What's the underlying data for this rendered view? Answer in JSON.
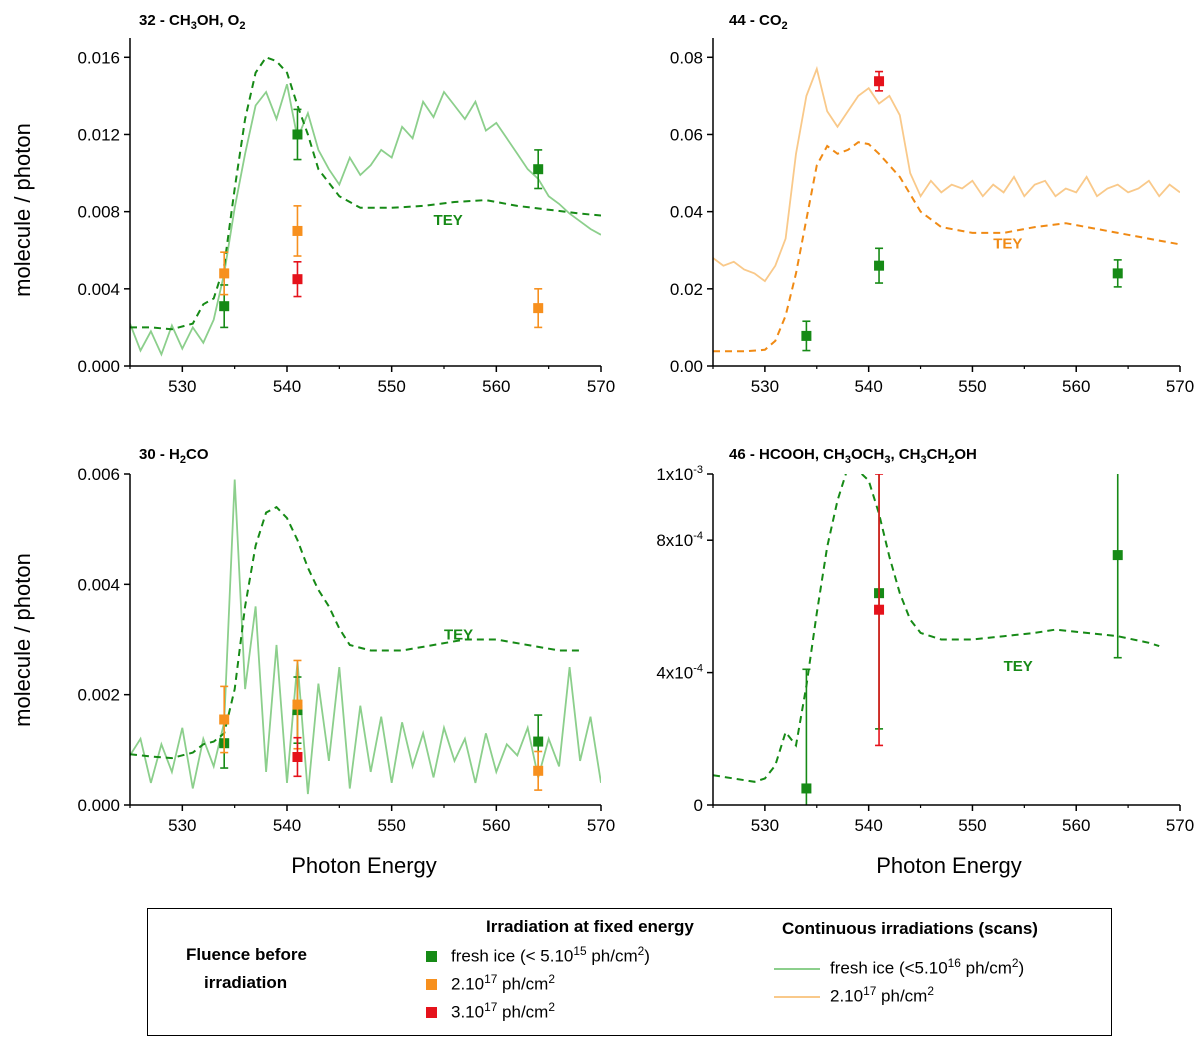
{
  "labels": {
    "ylabel": "molecule / photon",
    "xlabel": "Photon Energy",
    "tey": "TEY"
  },
  "colors": {
    "fresh_fixed": "#168a16",
    "fluence_2e17_fixed": "#f7901e",
    "fluence_3e17_fixed": "#e5121b",
    "fresh_scan": "#8ccf8c",
    "scan_2e17": "#f9c98a",
    "tey_green": "#168a16",
    "tey_orange": "#f08a14"
  },
  "legend": {
    "fluence_label_1": "Fluence before",
    "fluence_label_2": "irradiation",
    "fixed_header": "Irradiation at fixed energy",
    "scan_header": "Continuous irradiations (scans)",
    "fixed_items": [
      {
        "text": "fresh ice (< 5.10",
        "sup": "15",
        "unit": " ph/cm",
        "unit_sup": "2",
        "tail": ")",
        "color_key": "fresh_fixed"
      },
      {
        "text": "2.10",
        "sup": "17",
        "unit": " ph/cm",
        "unit_sup": "2",
        "tail": "",
        "color_key": "fluence_2e17_fixed"
      },
      {
        "text": "3.10",
        "sup": "17",
        "unit": " ph/cm",
        "unit_sup": "2",
        "tail": "",
        "color_key": "fluence_3e17_fixed"
      }
    ],
    "scan_items": [
      {
        "text": "fresh ice (<5.10",
        "sup": "16",
        "unit": " ph/cm",
        "unit_sup": "2",
        "tail": ")",
        "color_key": "fresh_scan"
      },
      {
        "text": "2.10",
        "sup": "17",
        "unit": " ph/cm",
        "unit_sup": "2",
        "tail": "",
        "color_key": "scan_2e17"
      }
    ]
  },
  "chart_data": [
    {
      "type": "line",
      "title_parts": [
        {
          "t": "32 - CH"
        },
        {
          "t": "3",
          "sub": true
        },
        {
          "t": "OH, O"
        },
        {
          "t": "2",
          "sub": true
        }
      ],
      "xlim": [
        525,
        570
      ],
      "xticks": [
        530,
        540,
        550,
        560,
        570
      ],
      "ylim": [
        0,
        0.017
      ],
      "yticks": [
        0,
        0.004,
        0.008,
        0.012,
        0.016
      ],
      "ytick_labels": [
        "0.000",
        "0.004",
        "0.008",
        "0.012",
        "0.016"
      ],
      "tey_color_key": "tey_green",
      "tey_label_at": [
        554,
        0.0073
      ],
      "tey": {
        "x": [
          525,
          527,
          529,
          531,
          532,
          533,
          534,
          535,
          536,
          537,
          538,
          539,
          540,
          541,
          542,
          543,
          545,
          547,
          550,
          553,
          556,
          559,
          562,
          565,
          568,
          570
        ],
        "y": [
          0.002,
          0.002,
          0.0019,
          0.0022,
          0.0032,
          0.0035,
          0.0052,
          0.0092,
          0.0128,
          0.0152,
          0.016,
          0.0158,
          0.0152,
          0.0135,
          0.012,
          0.0102,
          0.0088,
          0.0082,
          0.0082,
          0.0083,
          0.0085,
          0.0086,
          0.0083,
          0.0081,
          0.0079,
          0.0078
        ]
      },
      "scans": [
        {
          "color_key": "fresh_scan",
          "x": [
            525,
            526,
            527,
            528,
            529,
            530,
            531,
            532,
            533,
            534,
            535,
            536,
            537,
            538,
            539,
            540,
            541,
            542,
            543,
            544,
            545,
            546,
            547,
            548,
            549,
            550,
            551,
            552,
            553,
            554,
            555,
            556,
            557,
            558,
            559,
            560,
            561,
            562,
            563,
            564,
            565,
            566,
            567,
            568,
            569,
            570
          ],
          "y": [
            0.0022,
            0.0008,
            0.0018,
            0.0006,
            0.0021,
            0.0009,
            0.002,
            0.0012,
            0.0024,
            0.0048,
            0.0082,
            0.011,
            0.0135,
            0.0142,
            0.0128,
            0.0146,
            0.0118,
            0.0131,
            0.0112,
            0.0102,
            0.0094,
            0.0108,
            0.0099,
            0.0104,
            0.0112,
            0.0108,
            0.0124,
            0.0118,
            0.0137,
            0.0129,
            0.0142,
            0.0135,
            0.0128,
            0.0137,
            0.0122,
            0.0126,
            0.0118,
            0.011,
            0.0102,
            0.0097,
            0.0088,
            0.0084,
            0.0079,
            0.0075,
            0.0071,
            0.0068
          ]
        }
      ],
      "points": [
        {
          "x": 534,
          "y": 0.0031,
          "err": 0.0011,
          "color_key": "fresh_fixed"
        },
        {
          "x": 541,
          "y": 0.012,
          "err": 0.0013,
          "color_key": "fresh_fixed"
        },
        {
          "x": 564,
          "y": 0.0102,
          "err": 0.001,
          "color_key": "fresh_fixed"
        },
        {
          "x": 534,
          "y": 0.0048,
          "err": 0.0011,
          "color_key": "fluence_2e17_fixed"
        },
        {
          "x": 541,
          "y": 0.007,
          "err": 0.0013,
          "color_key": "fluence_2e17_fixed"
        },
        {
          "x": 564,
          "y": 0.003,
          "err": 0.001,
          "color_key": "fluence_2e17_fixed"
        },
        {
          "x": 541,
          "y": 0.0045,
          "err": 0.0009,
          "color_key": "fluence_3e17_fixed"
        }
      ]
    },
    {
      "type": "line",
      "title_parts": [
        {
          "t": "44 - CO"
        },
        {
          "t": "2",
          "sub": true
        }
      ],
      "xlim": [
        525,
        570
      ],
      "xticks": [
        530,
        540,
        550,
        560,
        570
      ],
      "ylim": [
        0,
        0.085
      ],
      "yticks": [
        0,
        0.02,
        0.04,
        0.06,
        0.08
      ],
      "ytick_labels": [
        "0.00",
        "0.02",
        "0.04",
        "0.06",
        "0.08"
      ],
      "tey_color_key": "tey_orange",
      "tey_label_at": [
        552,
        0.0305
      ],
      "tey": {
        "x": [
          525,
          528,
          530,
          531,
          532,
          533,
          534,
          535,
          536,
          537,
          538,
          539,
          540,
          541,
          542,
          543,
          545,
          547,
          550,
          553,
          556,
          559,
          562,
          565,
          568,
          570
        ],
        "y": [
          0.0038,
          0.0038,
          0.0042,
          0.0065,
          0.013,
          0.024,
          0.038,
          0.052,
          0.057,
          0.055,
          0.056,
          0.058,
          0.0575,
          0.055,
          0.052,
          0.049,
          0.04,
          0.036,
          0.0345,
          0.0345,
          0.036,
          0.037,
          0.0355,
          0.034,
          0.0325,
          0.0315
        ]
      },
      "scans": [
        {
          "color_key": "scan_2e17",
          "x": [
            525,
            526,
            527,
            528,
            529,
            530,
            531,
            532,
            533,
            534,
            535,
            536,
            537,
            538,
            539,
            540,
            541,
            542,
            543,
            544,
            545,
            546,
            547,
            548,
            549,
            550,
            551,
            552,
            553,
            554,
            555,
            556,
            557,
            558,
            559,
            560,
            561,
            562,
            563,
            564,
            565,
            566,
            567,
            568,
            569,
            570
          ],
          "y": [
            0.028,
            0.026,
            0.027,
            0.025,
            0.024,
            0.022,
            0.026,
            0.033,
            0.055,
            0.07,
            0.077,
            0.066,
            0.062,
            0.066,
            0.07,
            0.072,
            0.068,
            0.07,
            0.065,
            0.05,
            0.044,
            0.048,
            0.045,
            0.047,
            0.046,
            0.048,
            0.044,
            0.047,
            0.045,
            0.049,
            0.044,
            0.047,
            0.048,
            0.044,
            0.046,
            0.045,
            0.049,
            0.044,
            0.046,
            0.047,
            0.045,
            0.046,
            0.048,
            0.044,
            0.047,
            0.045
          ]
        }
      ],
      "points": [
        {
          "x": 534,
          "y": 0.0078,
          "err": 0.0038,
          "color_key": "fresh_fixed"
        },
        {
          "x": 541,
          "y": 0.026,
          "err": 0.0045,
          "color_key": "fresh_fixed"
        },
        {
          "x": 564,
          "y": 0.024,
          "err": 0.0035,
          "color_key": "fresh_fixed"
        },
        {
          "x": 541,
          "y": 0.0738,
          "err": 0.0025,
          "color_key": "fluence_3e17_fixed"
        }
      ]
    },
    {
      "type": "line",
      "title_parts": [
        {
          "t": "30 - H"
        },
        {
          "t": "2",
          "sub": true
        },
        {
          "t": "CO"
        }
      ],
      "xlim": [
        525,
        570
      ],
      "xticks": [
        530,
        540,
        550,
        560,
        570
      ],
      "ylim": [
        0,
        0.006
      ],
      "yticks": [
        0,
        0.002,
        0.004,
        0.006
      ],
      "ytick_labels": [
        "0.000",
        "0.002",
        "0.004",
        "0.006"
      ],
      "tey_color_key": "tey_green",
      "tey_label_at": [
        555,
        0.003
      ],
      "tey": {
        "x": [
          525,
          527,
          529,
          531,
          532,
          533,
          534,
          535,
          536,
          537,
          538,
          539,
          540,
          541,
          542,
          543,
          544,
          545,
          546,
          548,
          551,
          554,
          557,
          560,
          563,
          566,
          568
        ],
        "y": [
          0.00092,
          0.00088,
          0.00085,
          0.00095,
          0.0011,
          0.00115,
          0.0013,
          0.0021,
          0.0036,
          0.0047,
          0.0053,
          0.0054,
          0.0052,
          0.0048,
          0.0043,
          0.0039,
          0.0036,
          0.0032,
          0.0029,
          0.0028,
          0.0028,
          0.0029,
          0.003,
          0.003,
          0.0029,
          0.0028,
          0.0028
        ]
      },
      "scans": [
        {
          "color_key": "fresh_scan",
          "x": [
            525,
            526,
            527,
            528,
            529,
            530,
            531,
            532,
            533,
            534,
            535,
            536,
            537,
            538,
            539,
            540,
            541,
            542,
            543,
            544,
            545,
            546,
            547,
            548,
            549,
            550,
            551,
            552,
            553,
            554,
            555,
            556,
            557,
            558,
            559,
            560,
            561,
            562,
            563,
            564,
            565,
            566,
            567,
            568,
            569,
            570
          ],
          "y": [
            0.0009,
            0.0012,
            0.0004,
            0.0011,
            0.0006,
            0.0014,
            0.0003,
            0.0012,
            0.0007,
            0.0015,
            0.0059,
            0.0021,
            0.0036,
            0.0006,
            0.0029,
            0.0004,
            0.0026,
            0.0002,
            0.0022,
            0.0008,
            0.0025,
            0.0003,
            0.0018,
            0.0006,
            0.0016,
            0.0004,
            0.0015,
            0.0007,
            0.0013,
            0.0005,
            0.0014,
            0.0008,
            0.0012,
            0.0004,
            0.0013,
            0.0006,
            0.0011,
            0.0009,
            0.0014,
            0.0005,
            0.0012,
            0.0007,
            0.0025,
            0.0008,
            0.0016,
            0.0004
          ]
        }
      ],
      "points": [
        {
          "x": 534,
          "y": 0.00112,
          "err": 0.00045,
          "color_key": "fresh_fixed"
        },
        {
          "x": 541,
          "y": 0.00172,
          "err": 0.0006,
          "color_key": "fresh_fixed"
        },
        {
          "x": 564,
          "y": 0.00115,
          "err": 0.00048,
          "color_key": "fresh_fixed"
        },
        {
          "x": 534,
          "y": 0.00155,
          "err": 0.0006,
          "color_key": "fluence_2e17_fixed"
        },
        {
          "x": 541,
          "y": 0.00182,
          "err": 0.0008,
          "color_key": "fluence_2e17_fixed"
        },
        {
          "x": 564,
          "y": 0.00062,
          "err": 0.00035,
          "color_key": "fluence_2e17_fixed"
        },
        {
          "x": 541,
          "y": 0.00087,
          "err": 0.00035,
          "color_key": "fluence_3e17_fixed"
        }
      ]
    },
    {
      "type": "line",
      "title_parts": [
        {
          "t": "46 - HCOOH, CH"
        },
        {
          "t": "3",
          "sub": true
        },
        {
          "t": "OCH"
        },
        {
          "t": "3",
          "sub": true
        },
        {
          "t": ", CH"
        },
        {
          "t": "3",
          "sub": true
        },
        {
          "t": "CH"
        },
        {
          "t": "2",
          "sub": true
        },
        {
          "t": "OH"
        }
      ],
      "xlim": [
        525,
        570
      ],
      "xticks": [
        530,
        540,
        550,
        560,
        570
      ],
      "ylim": [
        0,
        0.001
      ],
      "yticks": [
        0,
        0.0004,
        0.0008,
        0.001
      ],
      "ytick_labels": [
        {
          "base": "0",
          "sup": ""
        },
        {
          "base": "4x10",
          "sup": "-4"
        },
        {
          "base": "8x10",
          "sup": "-4"
        },
        {
          "base": "1x10",
          "sup": "-3"
        }
      ],
      "tey_color_key": "tey_green",
      "tey_label_at": [
        553,
        0.000405
      ],
      "tey": {
        "x": [
          525,
          527,
          529,
          530,
          531,
          532,
          533,
          534,
          535,
          536,
          537,
          538,
          539,
          540,
          541,
          542,
          543,
          544,
          545,
          547,
          550,
          553,
          556,
          558,
          561,
          564,
          567,
          568
        ],
        "y": [
          9e-05,
          8e-05,
          7e-05,
          8e-05,
          0.00012,
          0.00022,
          0.00018,
          0.00036,
          0.00058,
          0.00078,
          0.00092,
          0.00102,
          0.00101,
          0.00098,
          0.00088,
          0.00075,
          0.00064,
          0.00056,
          0.00052,
          0.0005,
          0.0005,
          0.00051,
          0.00052,
          0.00053,
          0.00052,
          0.00051,
          0.00049,
          0.00048
        ]
      },
      "scans": [],
      "points": [
        {
          "x": 534,
          "y": 5e-05,
          "err": 0.00036,
          "color_key": "fresh_fixed"
        },
        {
          "x": 541,
          "y": 0.00064,
          "err": 0.00041,
          "color_key": "fresh_fixed"
        },
        {
          "x": 564,
          "y": 0.000755,
          "err": 0.00031,
          "color_key": "fresh_fixed"
        },
        {
          "x": 541,
          "y": 0.00059,
          "err": 0.00041,
          "color_key": "fluence_3e17_fixed"
        }
      ]
    }
  ]
}
